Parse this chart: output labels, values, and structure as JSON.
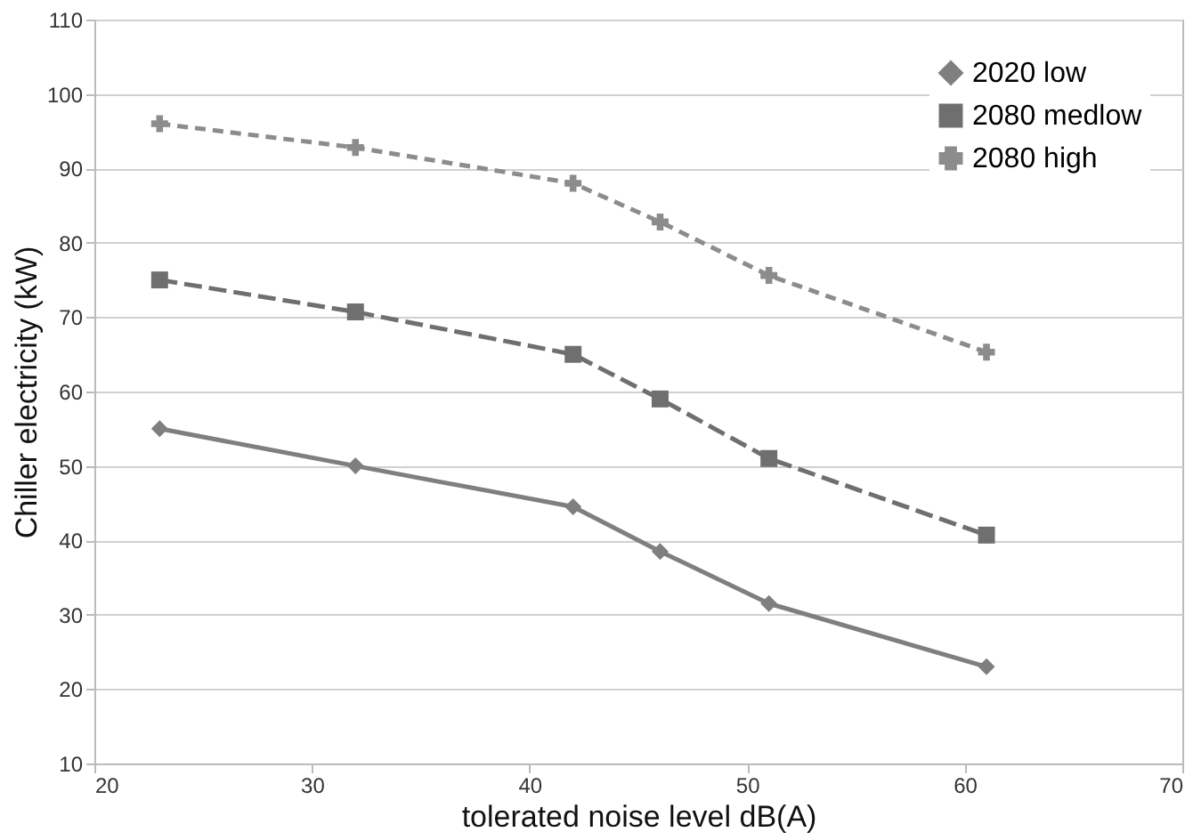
{
  "chart_data": {
    "type": "line",
    "xlabel": "tolerated noise level  dB(A)",
    "ylabel": "Chiller electricity  (kW)",
    "x": [
      23,
      32,
      42,
      46,
      51,
      61
    ],
    "series": [
      {
        "name": "2020 low",
        "color": "#7f7f7f",
        "marker": "diamond",
        "line_style": "solid",
        "values": [
          55,
          50,
          44.5,
          38.5,
          31.5,
          23
        ]
      },
      {
        "name": "2080 medlow",
        "color": "#6f6f6f",
        "marker": "square",
        "line_style": "dashed",
        "values": [
          75,
          70.7,
          65,
          59,
          51,
          40.7
        ]
      },
      {
        "name": "2080 high",
        "color": "#8c8c8c",
        "marker": "cross",
        "line_style": "dotted",
        "values": [
          96,
          92.8,
          88,
          82.8,
          75.6,
          65.3
        ]
      }
    ],
    "xlim": [
      20,
      70
    ],
    "xticks": [
      20,
      30,
      40,
      50,
      60,
      70
    ],
    "ylim": [
      10,
      110
    ],
    "yticks": [
      10,
      20,
      30,
      40,
      50,
      60,
      70,
      80,
      90,
      100,
      110
    ],
    "grid": "y",
    "legend": "top right"
  }
}
